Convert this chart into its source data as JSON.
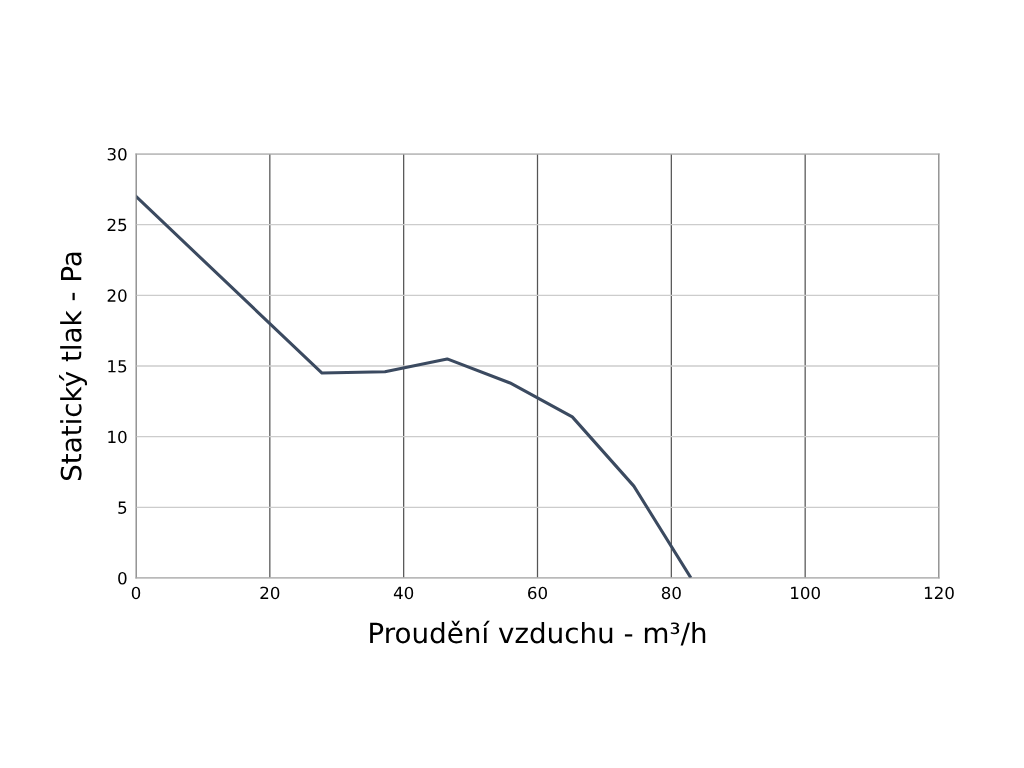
{
  "chart_data": {
    "type": "line",
    "xlabel": "Proudění vzduchu - m³/h",
    "ylabel": "Statický tlak - Pa",
    "x": [
      0,
      20,
      27.8,
      37.2,
      46.5,
      55.9,
      65.2,
      74.4,
      82.8
    ],
    "series": [
      {
        "color": "#3b4a60",
        "values": [
          27,
          18,
          14.5,
          14.6,
          15.5,
          13.8,
          11.4,
          6.5,
          0.1
        ]
      }
    ],
    "xlim": [
      0,
      120
    ],
    "xticks": [
      0,
      20,
      40,
      60,
      80,
      100,
      120
    ],
    "ylim": [
      0,
      30
    ],
    "yticks": [
      0,
      5,
      10,
      15,
      20,
      25,
      30
    ],
    "grid": true,
    "marker": "none",
    "line_style": "solid"
  }
}
